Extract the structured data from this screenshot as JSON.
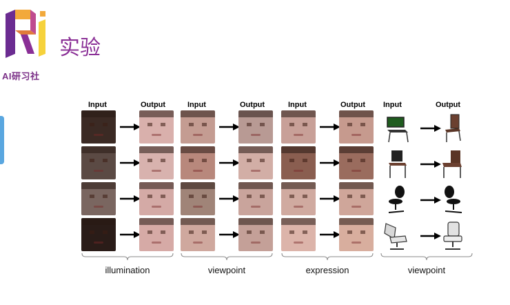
{
  "header": {
    "title": "实验",
    "brand": "AI研习社",
    "colors": {
      "accent": "#8a2f96",
      "logo_purple": "#6b2c91",
      "logo_orange": "#f2a93b",
      "logo_yellow": "#f6d23c"
    }
  },
  "panels": [
    {
      "input_label": "Input",
      "output_label": "Output",
      "category": "illumination"
    },
    {
      "input_label": "Input",
      "output_label": "Output",
      "category": "viewpoint"
    },
    {
      "input_label": "Input",
      "output_label": "Output",
      "category": "expression"
    },
    {
      "input_label": "Input",
      "output_label": "Output",
      "category": "viewpoint"
    }
  ],
  "icons": {
    "arrow": "right-arrow-icon",
    "chair": "chair-icon"
  }
}
